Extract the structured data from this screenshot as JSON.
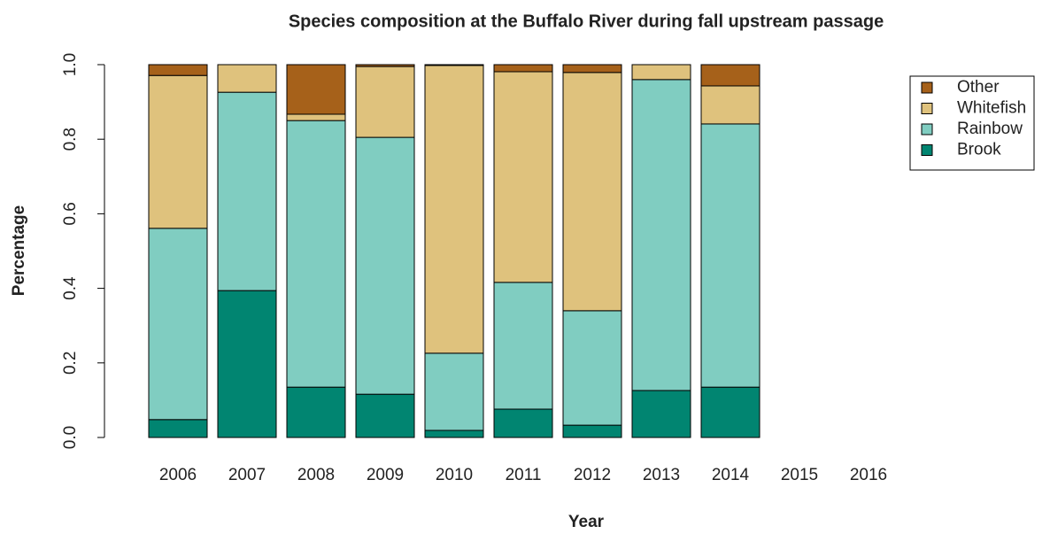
{
  "chart_data": {
    "type": "stacked_bar",
    "title": "Species composition at the Buffalo River during fall upstream passage",
    "x_label": "Year",
    "y_label": "Percentage",
    "categories": [
      "2006",
      "2007",
      "2008",
      "2009",
      "2010",
      "2011",
      "2012",
      "2013",
      "2014",
      "2015",
      "2016"
    ],
    "series": [
      {
        "name": "Brook",
        "color": "#018571",
        "values": [
          0.048,
          0.394,
          0.135,
          0.116,
          0.019,
          0.076,
          0.033,
          0.126,
          0.135,
          null,
          null
        ]
      },
      {
        "name": "Rainbow",
        "color": "#80cdc1",
        "values": [
          0.513,
          0.532,
          0.715,
          0.689,
          0.207,
          0.34,
          0.307,
          0.834,
          0.706,
          null,
          null
        ]
      },
      {
        "name": "Whitefish",
        "color": "#dfc27d",
        "values": [
          0.41,
          0.074,
          0.017,
          0.19,
          0.772,
          0.565,
          0.639,
          0.04,
          0.102,
          null,
          null
        ]
      },
      {
        "name": "Other",
        "color": "#a6611a",
        "values": [
          0.029,
          0,
          0.133,
          0.005,
          0.002,
          0.019,
          0.021,
          0,
          0.057,
          null,
          null
        ]
      }
    ],
    "ylim": [
      0,
      1
    ],
    "yticks": [
      {
        "value": 0,
        "label": "0.0"
      },
      0.2,
      0.4,
      0.6,
      0.8,
      {
        "value": 1,
        "label": "1.0"
      }
    ],
    "legend": "top-right"
  }
}
